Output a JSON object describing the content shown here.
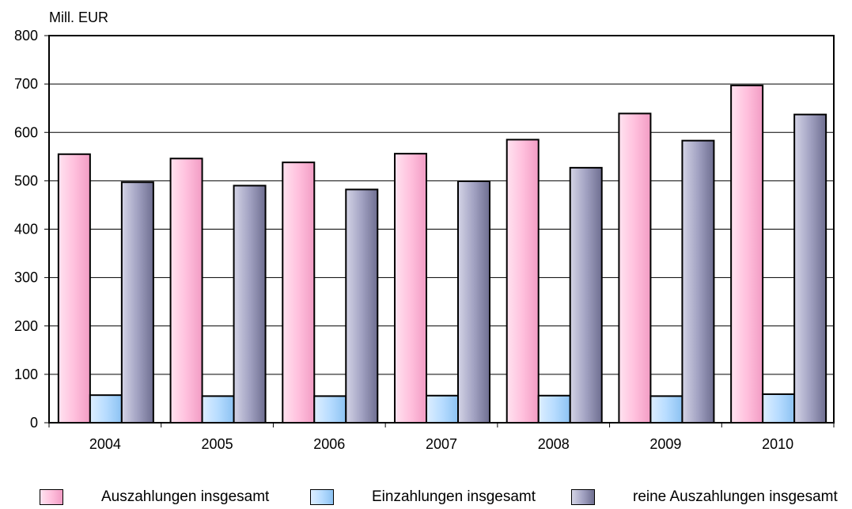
{
  "chart_data": {
    "type": "bar",
    "title": "",
    "ylabel": "Mill. EUR",
    "xlabel": "",
    "categories": [
      "2004",
      "2005",
      "2006",
      "2007",
      "2008",
      "2009",
      "2010"
    ],
    "ylim": [
      0,
      800
    ],
    "yticks": [
      0,
      100,
      200,
      300,
      400,
      500,
      600,
      700,
      800
    ],
    "grid": true,
    "legend_position": "bottom",
    "series": [
      {
        "name": "Auszahlungen insgesamt",
        "values": [
          555,
          546,
          538,
          556,
          585,
          639,
          697
        ],
        "color": "#ffc0dd"
      },
      {
        "name": "Einzahlungen insgesamt",
        "values": [
          57,
          55,
          55,
          56,
          56,
          55,
          59
        ],
        "color": "#b7dcff"
      },
      {
        "name": "reine Auszahlungen insgesamt",
        "values": [
          497,
          490,
          482,
          499,
          527,
          583,
          637
        ],
        "color": "#a2a2c2"
      }
    ]
  }
}
